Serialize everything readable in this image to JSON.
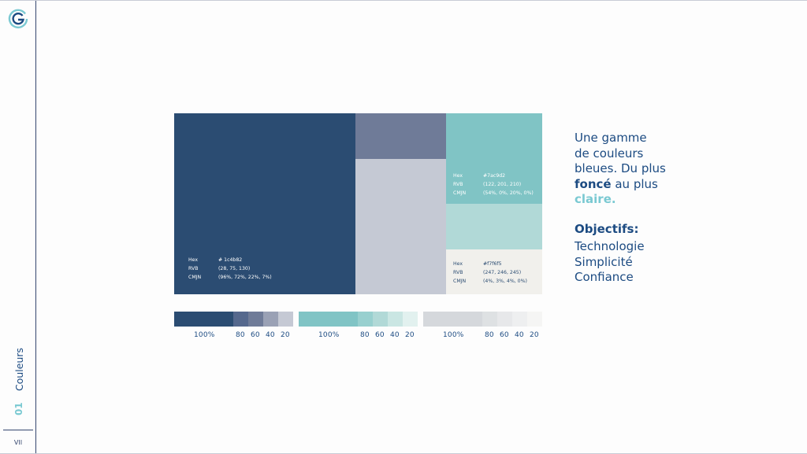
{
  "sidebar": {
    "section_number": "01",
    "section_label": "Couleurs",
    "page_number": "VII"
  },
  "palette": {
    "dark": {
      "hex_label": "Hex",
      "hex": "# 1c4b82",
      "rgb_label": "RVB",
      "rgb": "(28, 75, 130)",
      "cmyk_label": "CMJN",
      "cmyk": "(96%, 72%, 22%, 7%)",
      "color": "#2b4c72"
    },
    "mid_top": {
      "color": "#6f7b98"
    },
    "mid_bottom": {
      "color": "#c5c9d4"
    },
    "teal": {
      "hex_label": "Hex",
      "hex": "#7ac9d2",
      "rgb_label": "RVB",
      "rgb": "(122, 201, 210)",
      "cmyk_label": "CMJN",
      "cmyk": "(54%, 0%, 20%, 0%)",
      "color": "#80c4c5"
    },
    "teal_light": {
      "color": "#b1d9d7"
    },
    "light": {
      "hex_label": "Hex",
      "hex": "#f7f6f5",
      "rgb_label": "RVB",
      "rgb": "(247, 246, 245)",
      "cmyk_label": "CMJN",
      "cmyk": "(4%, 3%, 4%, 0%)",
      "color": "#f1f0ec"
    }
  },
  "tint_bars": [
    {
      "colors": [
        "#2b4c72",
        "#55688d",
        "#6f7b98",
        "#9aa1b5",
        "#c5c9d4"
      ],
      "labels": [
        "100%",
        "80",
        "60",
        "40",
        "20"
      ]
    },
    {
      "colors": [
        "#80c4c5",
        "#98d0cf",
        "#b1d9d7",
        "#cae6e3",
        "#e2f1ef"
      ],
      "labels": [
        "100%",
        "80",
        "60",
        "40",
        "20"
      ]
    },
    {
      "colors": [
        "#d5d8dc",
        "#dee1e3",
        "#e7e8ea",
        "#eeeff0",
        "#f5f5f4"
      ],
      "labels": [
        "100%",
        "80",
        "60",
        "40",
        "20"
      ]
    }
  ],
  "text": {
    "line1": "Une gamme",
    "line2": "de couleurs",
    "line3": "bleues. Du plus",
    "line4_bold": "foncé",
    "line4_rest": " au plus",
    "line5_accent": "claire.",
    "objectives_title": "Objectifs:",
    "objectives": [
      "Technologie",
      "Simplicité",
      "Confiance"
    ]
  },
  "colors": {
    "primary": "#1c4b82",
    "accent": "#7ac9d2"
  }
}
